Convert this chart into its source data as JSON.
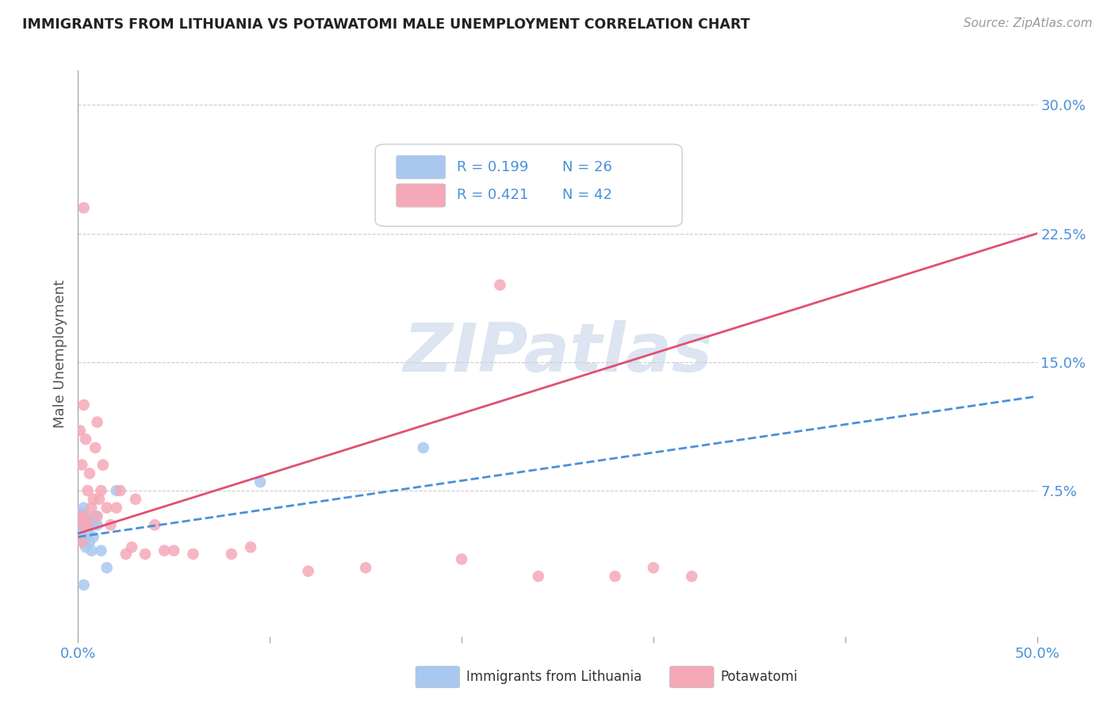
{
  "title": "IMMIGRANTS FROM LITHUANIA VS POTAWATOMI MALE UNEMPLOYMENT CORRELATION CHART",
  "source": "Source: ZipAtlas.com",
  "ylabel": "Male Unemployment",
  "xlim": [
    0.0,
    0.5
  ],
  "ylim": [
    -0.01,
    0.32
  ],
  "yticks": [
    0.075,
    0.15,
    0.225,
    0.3
  ],
  "ytick_labels": [
    "7.5%",
    "15.0%",
    "22.5%",
    "30.0%"
  ],
  "xticks": [
    0.0,
    0.1,
    0.2,
    0.3,
    0.4,
    0.5
  ],
  "xtick_labels": [
    "0.0%",
    "",
    "",
    "",
    "",
    "50.0%"
  ],
  "legend_R1": "R = 0.199",
  "legend_N1": "N = 26",
  "legend_R2": "R = 0.421",
  "legend_N2": "N = 42",
  "blue_color": "#A8C8F0",
  "pink_color": "#F5A8B8",
  "blue_line_color": "#4A90D9",
  "pink_line_color": "#E05070",
  "grid_color": "#CCCCCC",
  "watermark_color": "#C5D5E8",
  "blue_scatter_x": [
    0.001,
    0.001,
    0.002,
    0.002,
    0.002,
    0.003,
    0.003,
    0.003,
    0.004,
    0.004,
    0.005,
    0.005,
    0.005,
    0.006,
    0.006,
    0.007,
    0.008,
    0.008,
    0.009,
    0.01,
    0.012,
    0.015,
    0.02,
    0.095,
    0.003,
    0.18
  ],
  "blue_scatter_y": [
    0.055,
    0.06,
    0.05,
    0.058,
    0.062,
    0.045,
    0.06,
    0.065,
    0.042,
    0.058,
    0.05,
    0.055,
    0.058,
    0.045,
    0.055,
    0.04,
    0.048,
    0.055,
    0.06,
    0.055,
    0.04,
    0.03,
    0.075,
    0.08,
    0.02,
    0.1
  ],
  "pink_scatter_x": [
    0.001,
    0.001,
    0.002,
    0.002,
    0.003,
    0.003,
    0.004,
    0.004,
    0.005,
    0.005,
    0.006,
    0.007,
    0.008,
    0.009,
    0.01,
    0.01,
    0.011,
    0.012,
    0.013,
    0.015,
    0.017,
    0.02,
    0.022,
    0.025,
    0.028,
    0.03,
    0.035,
    0.04,
    0.045,
    0.05,
    0.06,
    0.08,
    0.09,
    0.12,
    0.15,
    0.2,
    0.24,
    0.28,
    0.3,
    0.32,
    0.003,
    0.22
  ],
  "pink_scatter_y": [
    0.06,
    0.11,
    0.045,
    0.09,
    0.125,
    0.055,
    0.06,
    0.105,
    0.055,
    0.075,
    0.085,
    0.065,
    0.07,
    0.1,
    0.06,
    0.115,
    0.07,
    0.075,
    0.09,
    0.065,
    0.055,
    0.065,
    0.075,
    0.038,
    0.042,
    0.07,
    0.038,
    0.055,
    0.04,
    0.04,
    0.038,
    0.038,
    0.042,
    0.028,
    0.03,
    0.035,
    0.025,
    0.025,
    0.03,
    0.025,
    0.24,
    0.195
  ],
  "blue_trend_x": [
    0.0,
    0.5
  ],
  "blue_trend_y": [
    0.048,
    0.13
  ],
  "pink_trend_x": [
    0.0,
    0.5
  ],
  "pink_trend_y": [
    0.05,
    0.225
  ]
}
